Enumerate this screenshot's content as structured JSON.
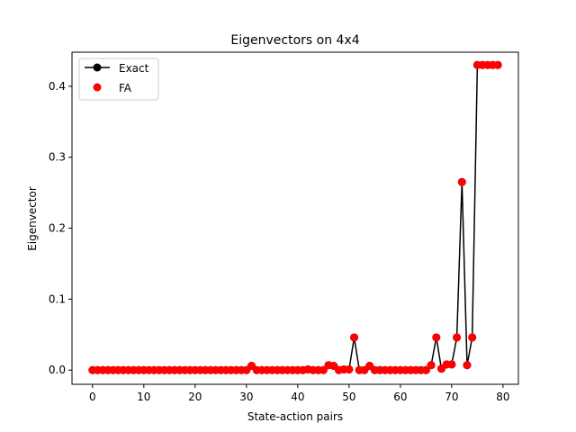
{
  "chart_data": {
    "type": "line",
    "title": "Eigenvectors on 4x4",
    "xlabel": "State-action pairs",
    "ylabel": "Eigenvector",
    "xlim": [
      -4,
      83
    ],
    "ylim": [
      -0.02,
      0.448
    ],
    "xticks": [
      0,
      10,
      20,
      30,
      40,
      50,
      60,
      70,
      80
    ],
    "yticks": [
      0.0,
      0.1,
      0.2,
      0.3,
      0.4
    ],
    "xtick_labels": [
      "0",
      "10",
      "20",
      "30",
      "40",
      "50",
      "60",
      "70",
      "80"
    ],
    "ytick_labels": [
      "0.0",
      "0.1",
      "0.2",
      "0.3",
      "0.4"
    ],
    "grid": false,
    "legend_position": "top-left",
    "x": [
      0,
      1,
      2,
      3,
      4,
      5,
      6,
      7,
      8,
      9,
      10,
      11,
      12,
      13,
      14,
      15,
      16,
      17,
      18,
      19,
      20,
      21,
      22,
      23,
      24,
      25,
      26,
      27,
      28,
      29,
      30,
      31,
      32,
      33,
      34,
      35,
      36,
      37,
      38,
      39,
      40,
      41,
      42,
      43,
      44,
      45,
      46,
      47,
      48,
      49,
      50,
      51,
      52,
      53,
      54,
      55,
      56,
      57,
      58,
      59,
      60,
      61,
      62,
      63,
      64,
      65,
      66,
      67,
      68,
      69,
      70,
      71,
      72,
      73,
      74,
      75,
      76,
      77,
      78,
      79
    ],
    "series": [
      {
        "name": "Exact",
        "style": "line-marker",
        "color": "#000000",
        "values": [
          0,
          0,
          0,
          0,
          0,
          0,
          0,
          0,
          0,
          0,
          0,
          0,
          0,
          0,
          0,
          0,
          0,
          0,
          0,
          0,
          0,
          0,
          0,
          0,
          0,
          0,
          0,
          0,
          0,
          0,
          0,
          0.006,
          0,
          0,
          0,
          0,
          0,
          0,
          0,
          0,
          0,
          0,
          0.001,
          0,
          0,
          0,
          0.007,
          0.006,
          0,
          0.001,
          0.001,
          0.046,
          0,
          0,
          0.006,
          0,
          0,
          0,
          0,
          0,
          0,
          0,
          0,
          0,
          0,
          0,
          0.007,
          0.046,
          0.002,
          0.008,
          0.008,
          0.046,
          0.265,
          0.007,
          0.046,
          0.43,
          0.43,
          0.43,
          0.43,
          0.43
        ]
      },
      {
        "name": "FA",
        "style": "marker",
        "color": "#ff0000",
        "values": [
          0,
          0,
          0,
          0,
          0,
          0,
          0,
          0,
          0,
          0,
          0,
          0,
          0,
          0,
          0,
          0,
          0,
          0,
          0,
          0,
          0,
          0,
          0,
          0,
          0,
          0,
          0,
          0,
          0,
          0,
          0,
          0.006,
          0,
          0,
          0,
          0,
          0,
          0,
          0,
          0,
          0,
          0,
          0.001,
          0,
          0,
          0,
          0.007,
          0.006,
          0,
          0.001,
          0.001,
          0.046,
          0,
          0,
          0.006,
          0,
          0,
          0,
          0,
          0,
          0,
          0,
          0,
          0,
          0,
          0,
          0.007,
          0.046,
          0.002,
          0.008,
          0.008,
          0.046,
          0.265,
          0.007,
          0.046,
          0.43,
          0.43,
          0.43,
          0.43,
          0.43
        ]
      }
    ]
  }
}
